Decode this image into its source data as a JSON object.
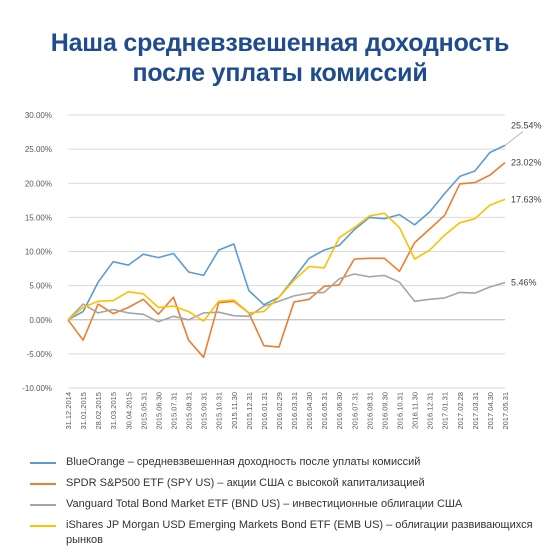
{
  "title": {
    "line1": "Наша средневзвешенная доходность",
    "line2": "после уплаты комиссий"
  },
  "chart_data": {
    "type": "line",
    "title": "Наша средневзвешенная доходность после уплаты комиссий",
    "ylim": [
      -10,
      30
    ],
    "yticks": [
      "-10.00%",
      "-5.00%",
      "0.00%",
      "5.00%",
      "10.00%",
      "15.00%",
      "20.00%",
      "25.00%",
      "30.00%"
    ],
    "ytick_values": [
      -10,
      -5,
      0,
      5,
      10,
      15,
      20,
      25,
      30
    ],
    "grid": true,
    "legend_position": "bottom",
    "x": [
      "31.12.2014",
      "31.01.2015",
      "28.02.2015",
      "31.03.2015",
      "30.04.2015",
      "2015.05.31",
      "2015.06.30",
      "2015.07.31",
      "2015.08.31",
      "2015.09.31",
      "2015.10.31",
      "2015.11.30",
      "2015.12.31",
      "2016.01.31",
      "2016.02.29",
      "2016.03.31",
      "2016.04.30",
      "2016.05.31",
      "2016.06.30",
      "2016.07.31",
      "2016.08.31",
      "2016.09.30",
      "2016.10.31",
      "2016.11.30",
      "2016.12.31",
      "2017.01.31",
      "2017.02.28",
      "2017.03.31",
      "2017.04.30",
      "2017.05.31"
    ],
    "series": [
      {
        "name": "BlueOrange – средневзвешенная доходность после уплаты комиссий",
        "color": "#5b9bd5",
        "end_label": "25.54%",
        "values": [
          0,
          1.2,
          5.5,
          8.5,
          8.0,
          9.6,
          9.1,
          9.7,
          7.0,
          6.5,
          10.2,
          11.1,
          4.3,
          2.2,
          3.3,
          6.1,
          9.0,
          10.2,
          10.9,
          13.2,
          15.0,
          14.8,
          15.4,
          13.9,
          15.8,
          18.5,
          21.0,
          21.8,
          24.5,
          25.54
        ]
      },
      {
        "name": "SPDR S&P500 ETF (SPY US) – акции США с высокой капитализацией",
        "color": "#ed7d31",
        "end_label": "23.02%",
        "values": [
          0,
          -3.0,
          2.3,
          0.9,
          1.8,
          3.0,
          0.8,
          3.3,
          -3.0,
          -5.5,
          2.5,
          2.7,
          1.0,
          -3.8,
          -4.0,
          2.6,
          3.0,
          4.9,
          5.1,
          8.9,
          9.0,
          9.0,
          7.1,
          11.3,
          13.3,
          15.3,
          19.9,
          20.1,
          21.2,
          23.02
        ]
      },
      {
        "name": "Vanguard Total Bond Market ETF (BND US) – инвестиционные облигации США",
        "color": "#a5a5a5",
        "end_label": "5.46%",
        "values": [
          0,
          2.3,
          1.0,
          1.5,
          1.0,
          0.8,
          -0.3,
          0.5,
          0.0,
          1.0,
          1.1,
          0.6,
          0.5,
          2.0,
          2.7,
          3.5,
          3.9,
          4.0,
          6.0,
          6.7,
          6.3,
          6.5,
          5.5,
          2.7,
          3.0,
          3.2,
          4.0,
          3.9,
          4.8,
          5.46
        ]
      },
      {
        "name": "iShares JP Morgan USD Emerging Markets Bond ETF (EMB US) – облигации развивающихся рынков",
        "color": "#ffc000",
        "end_label": "17.63%",
        "values": [
          0,
          1.8,
          2.7,
          2.8,
          4.1,
          3.8,
          1.8,
          2.0,
          1.2,
          -0.2,
          2.7,
          2.9,
          1.0,
          1.2,
          3.3,
          5.8,
          7.8,
          7.6,
          12.0,
          13.5,
          15.2,
          15.6,
          13.5,
          8.9,
          10.2,
          12.4,
          14.2,
          14.8,
          16.8,
          17.63
        ]
      }
    ]
  }
}
